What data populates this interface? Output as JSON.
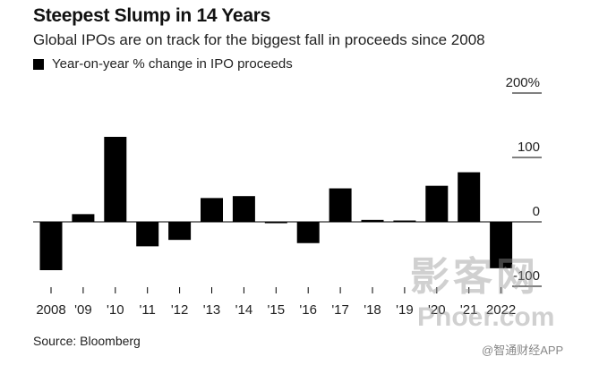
{
  "chart_data": {
    "type": "bar",
    "title": "Steepest Slump in 14 Years",
    "subtitle": "Global IPOs are on track for the biggest fall in proceeds since 2008",
    "legend": "Year-on-year % change in IPO proceeds",
    "categories": [
      "2008",
      "'09",
      "'10",
      "'11",
      "'12",
      "'13",
      "'14",
      "'15",
      "'16",
      "'17",
      "'18",
      "'19",
      "'20",
      "'21",
      "2022"
    ],
    "values": [
      -75,
      12,
      132,
      -38,
      -28,
      37,
      40,
      -1,
      -33,
      52,
      3,
      2,
      56,
      77,
      -72
    ],
    "ylim": [
      -120,
      200
    ],
    "yticks": [
      {
        "value": 200,
        "label": "200%"
      },
      {
        "value": 100,
        "label": "100"
      },
      {
        "value": 0,
        "label": "0"
      },
      {
        "value": -100,
        "label": "-100"
      }
    ],
    "colors": {
      "bar": "#000000",
      "axis": "#000000",
      "grid": "#000000"
    },
    "source": "Source: Bloomberg"
  },
  "overlay": {
    "watermark": "影客网",
    "watermark_sub": "Phoer.com",
    "app_credit": "@智通财经APP"
  }
}
